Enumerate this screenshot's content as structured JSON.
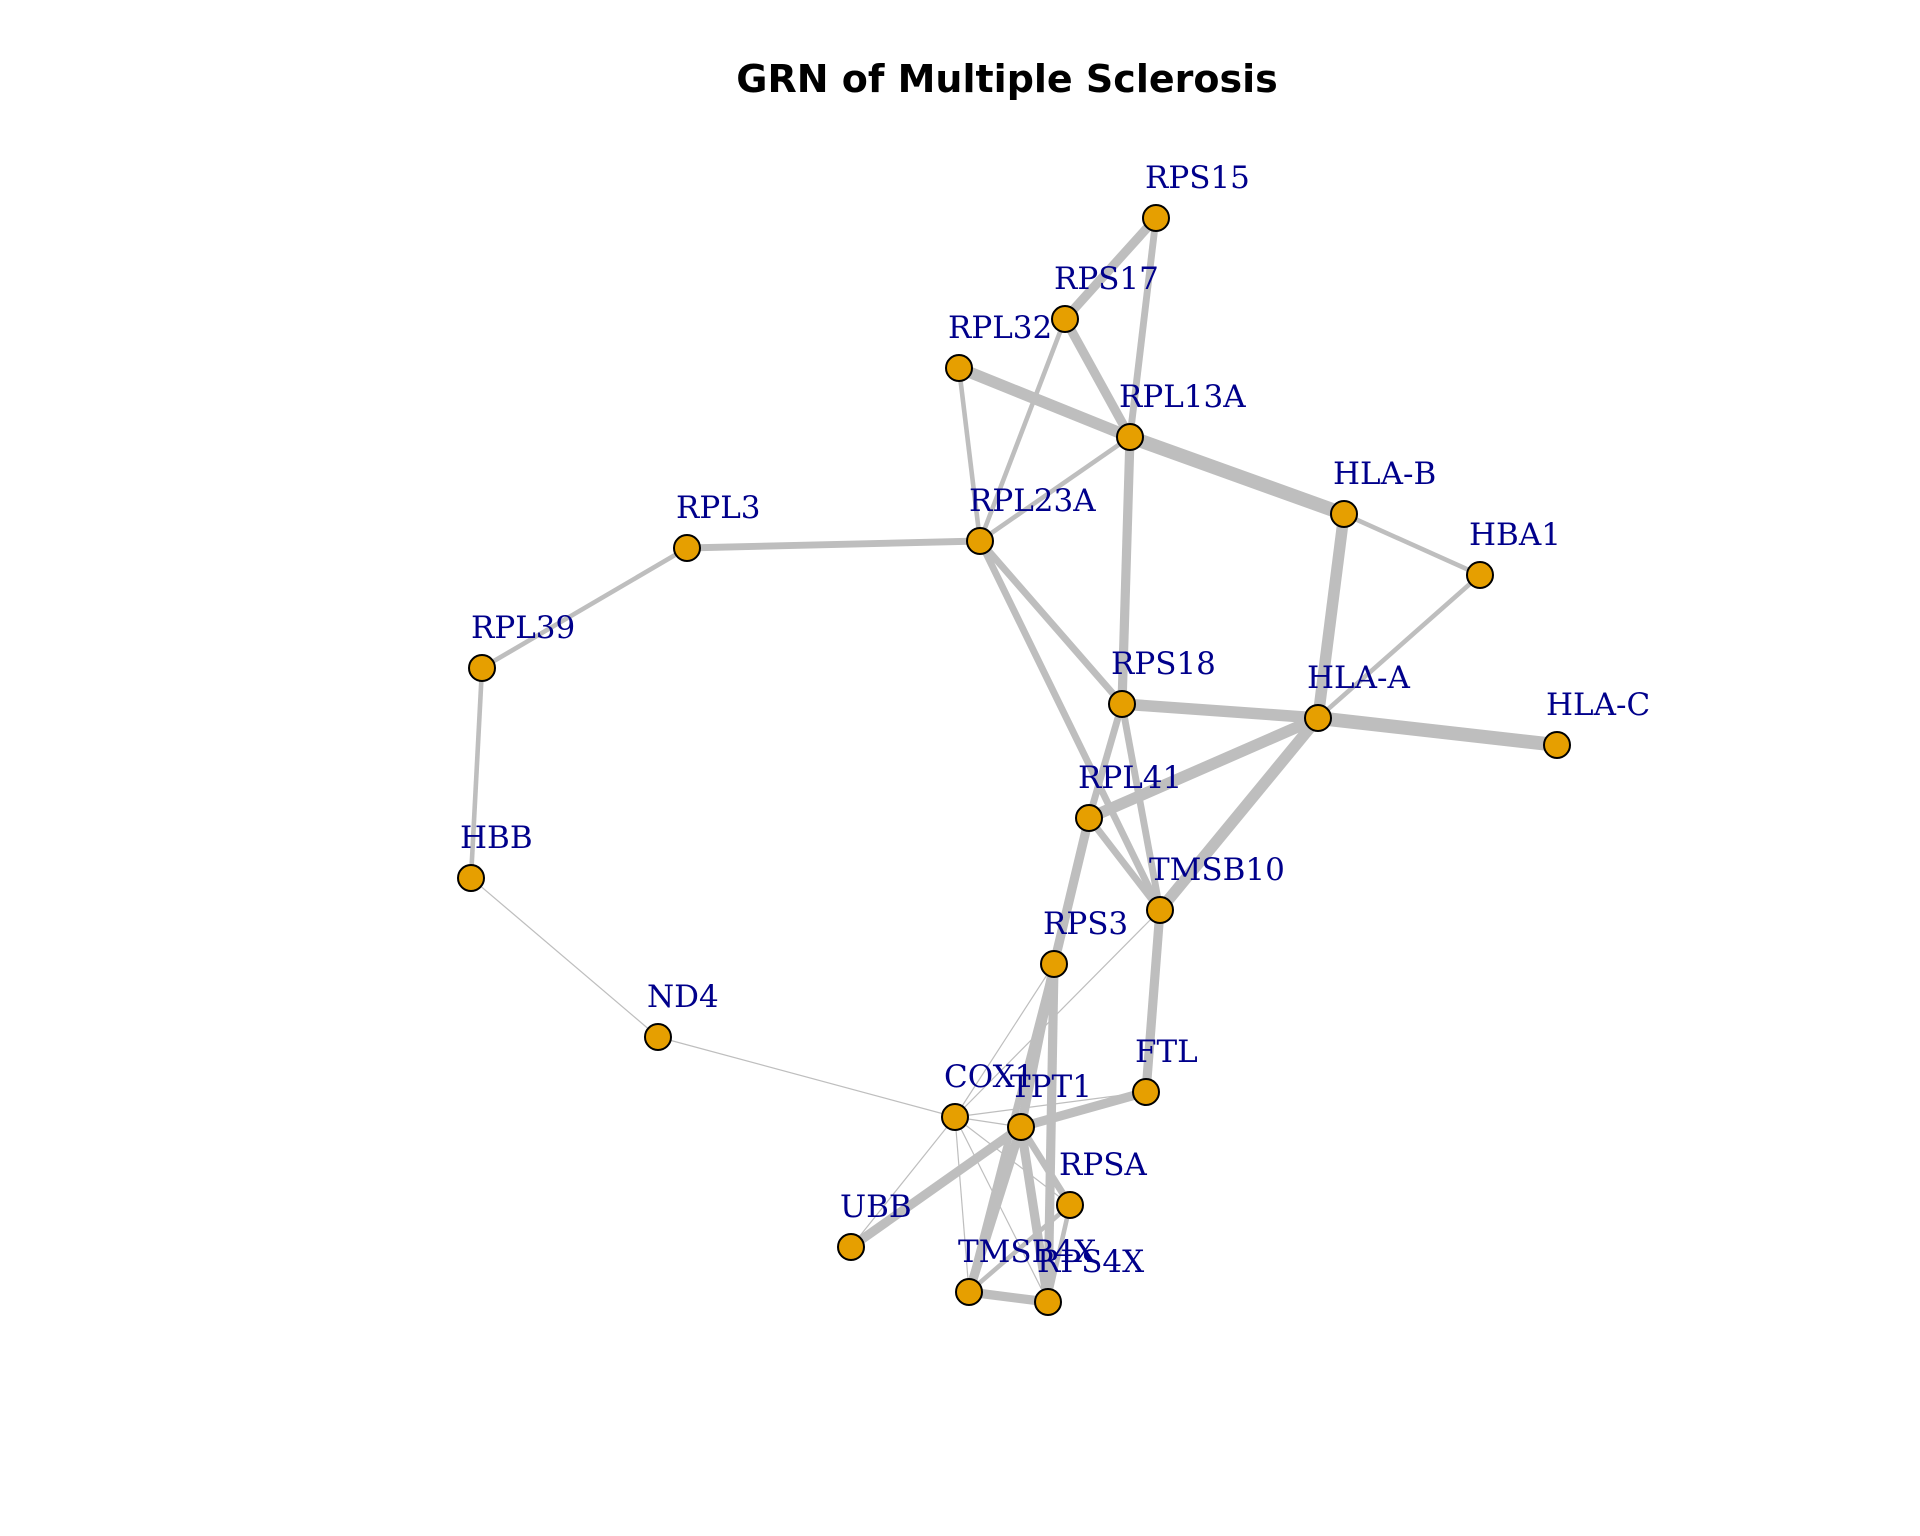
{
  "title": "GRN of Multiple Sclerosis",
  "colors": {
    "edge": "#bebebe",
    "node_fill": "#e69f00",
    "node_stroke": "#000000",
    "label": "#00008b"
  },
  "graph": {
    "nodes": [
      {
        "id": "RPS15",
        "label": "RPS15"
      },
      {
        "id": "RPS17",
        "label": "RPS17"
      },
      {
        "id": "RPL32",
        "label": "RPL32"
      },
      {
        "id": "RPL13A",
        "label": "RPL13A"
      },
      {
        "id": "HLA-B",
        "label": "HLA-B"
      },
      {
        "id": "HBA1",
        "label": "HBA1"
      },
      {
        "id": "RPL3",
        "label": "RPL3"
      },
      {
        "id": "RPL23A",
        "label": "RPL23A"
      },
      {
        "id": "RPL39",
        "label": "RPL39"
      },
      {
        "id": "RPS18",
        "label": "RPS18"
      },
      {
        "id": "HLA-A",
        "label": "HLA-A"
      },
      {
        "id": "HLA-C",
        "label": "HLA-C"
      },
      {
        "id": "RPL41",
        "label": "RPL41"
      },
      {
        "id": "HBB",
        "label": "HBB"
      },
      {
        "id": "TMSB10",
        "label": "TMSB10"
      },
      {
        "id": "RPS3",
        "label": "RPS3"
      },
      {
        "id": "ND4",
        "label": "ND4"
      },
      {
        "id": "FTL",
        "label": "FTL"
      },
      {
        "id": "COX1",
        "label": "COX1"
      },
      {
        "id": "TPT1",
        "label": "TPT1"
      },
      {
        "id": "RPSA",
        "label": "RPSA"
      },
      {
        "id": "UBB",
        "label": "UBB"
      },
      {
        "id": "TMSB4X",
        "label": "TMSB4X"
      },
      {
        "id": "RPS4X",
        "label": "RPS4X"
      }
    ],
    "edges": [
      {
        "source": "RPS15",
        "target": "RPS17",
        "weight": 4
      },
      {
        "source": "RPS15",
        "target": "RPL13A",
        "weight": 3
      },
      {
        "source": "RPS17",
        "target": "RPL13A",
        "weight": 4
      },
      {
        "source": "RPS17",
        "target": "RPL23A",
        "weight": 2
      },
      {
        "source": "RPL32",
        "target": "RPL13A",
        "weight": 5
      },
      {
        "source": "RPL32",
        "target": "RPL23A",
        "weight": 2
      },
      {
        "source": "RPL13A",
        "target": "HLA-B",
        "weight": 6
      },
      {
        "source": "RPL13A",
        "target": "RPL23A",
        "weight": 2
      },
      {
        "source": "RPL13A",
        "target": "RPS18",
        "weight": 4
      },
      {
        "source": "HLA-B",
        "target": "HBA1",
        "weight": 2
      },
      {
        "source": "HLA-B",
        "target": "HLA-A",
        "weight": 5
      },
      {
        "source": "HBA1",
        "target": "HLA-A",
        "weight": 2
      },
      {
        "source": "RPL3",
        "target": "RPL23A",
        "weight": 3
      },
      {
        "source": "RPL3",
        "target": "RPL39",
        "weight": 2
      },
      {
        "source": "RPL39",
        "target": "HBB",
        "weight": 2
      },
      {
        "source": "RPL23A",
        "target": "RPS18",
        "weight": 3
      },
      {
        "source": "RPL23A",
        "target": "TMSB10",
        "weight": 3
      },
      {
        "source": "RPS18",
        "target": "HLA-A",
        "weight": 5
      },
      {
        "source": "RPS18",
        "target": "RPL41",
        "weight": 3
      },
      {
        "source": "RPS18",
        "target": "TMSB10",
        "weight": 3
      },
      {
        "source": "HLA-A",
        "target": "HLA-C",
        "weight": 6
      },
      {
        "source": "HLA-A",
        "target": "RPL41",
        "weight": 5
      },
      {
        "source": "HLA-A",
        "target": "TMSB10",
        "weight": 5
      },
      {
        "source": "RPL41",
        "target": "TMSB10",
        "weight": 3
      },
      {
        "source": "RPL41",
        "target": "RPS3",
        "weight": 4
      },
      {
        "source": "TMSB10",
        "target": "FTL",
        "weight": 4
      },
      {
        "source": "TMSB10",
        "target": "COX1",
        "weight": 0.5
      },
      {
        "source": "HBB",
        "target": "ND4",
        "weight": 0.5
      },
      {
        "source": "ND4",
        "target": "COX1",
        "weight": 0.5
      },
      {
        "source": "RPS3",
        "target": "COX1",
        "weight": 0.5
      },
      {
        "source": "RPS3",
        "target": "TPT1",
        "weight": 4
      },
      {
        "source": "RPS3",
        "target": "RPS4X",
        "weight": 4
      },
      {
        "source": "RPS3",
        "target": "TMSB4X",
        "weight": 3
      },
      {
        "source": "FTL",
        "target": "TPT1",
        "weight": 4
      },
      {
        "source": "FTL",
        "target": "COX1",
        "weight": 0.5
      },
      {
        "source": "COX1",
        "target": "TPT1",
        "weight": 0.5
      },
      {
        "source": "COX1",
        "target": "UBB",
        "weight": 0.5
      },
      {
        "source": "COX1",
        "target": "TMSB4X",
        "weight": 0.5
      },
      {
        "source": "COX1",
        "target": "RPS4X",
        "weight": 0.5
      },
      {
        "source": "COX1",
        "target": "RPSA",
        "weight": 0.5
      },
      {
        "source": "TPT1",
        "target": "UBB",
        "weight": 4
      },
      {
        "source": "TPT1",
        "target": "TMSB4X",
        "weight": 4
      },
      {
        "source": "TPT1",
        "target": "RPS4X",
        "weight": 4
      },
      {
        "source": "TPT1",
        "target": "RPSA",
        "weight": 3
      },
      {
        "source": "TMSB4X",
        "target": "RPS4X",
        "weight": 4
      },
      {
        "source": "TMSB4X",
        "target": "RPSA",
        "weight": 2
      },
      {
        "source": "RPS4X",
        "target": "RPSA",
        "weight": 2
      }
    ]
  }
}
